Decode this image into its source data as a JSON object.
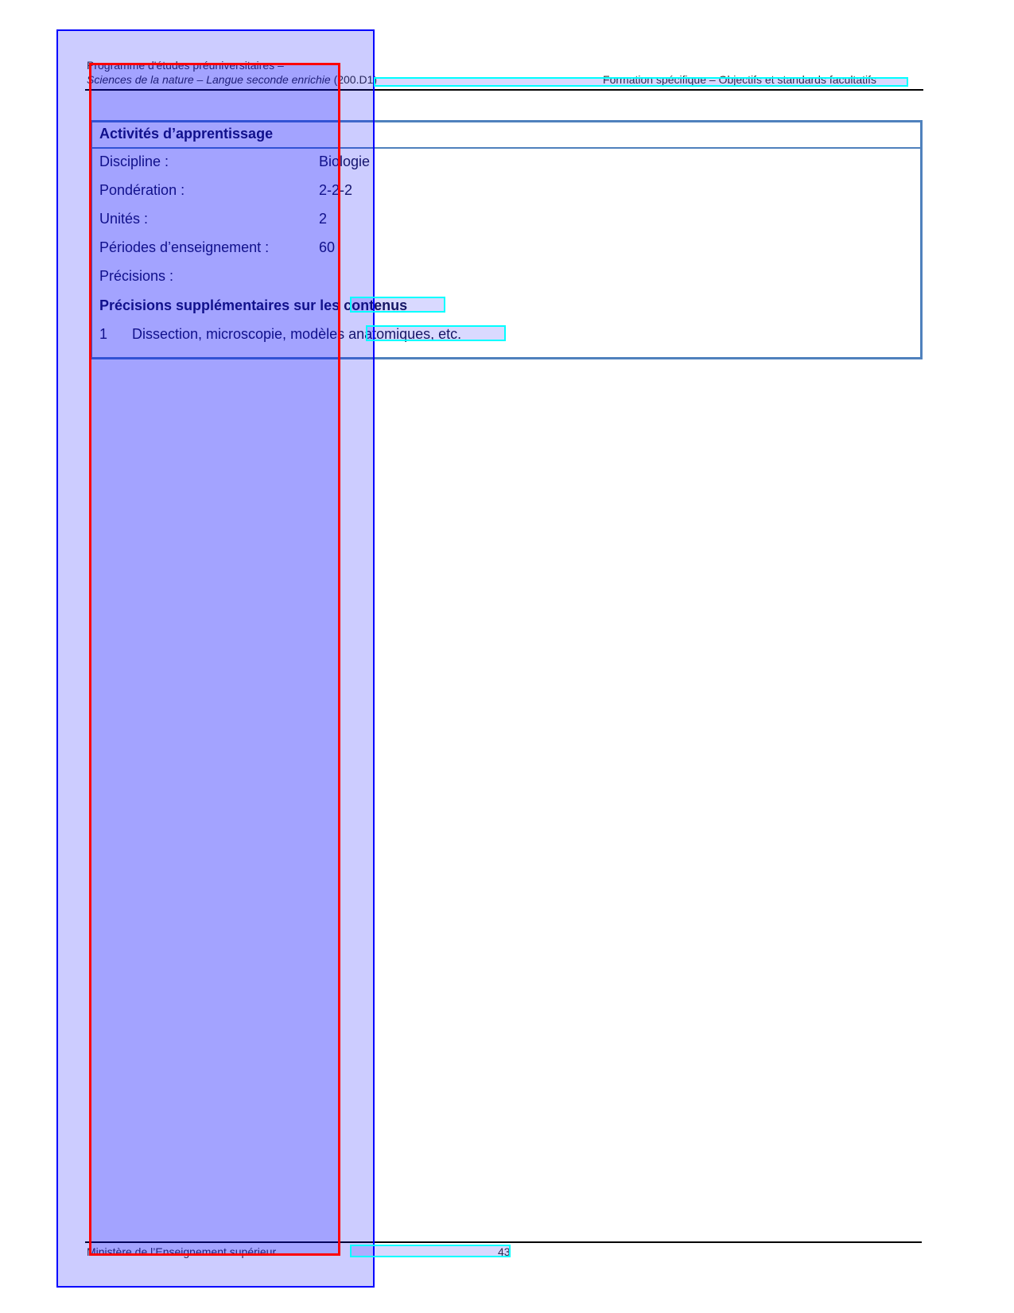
{
  "header": {
    "line1": "Programme d'études préuniversitaires –",
    "line2_italic": "Sciences de la nature – Langue seconde enrichie",
    "line2_code": "(200.D1)",
    "right": "Formation spécifique – Objectifs et standards facultatifs"
  },
  "box": {
    "title": "Activités d’apprentissage",
    "fields": [
      {
        "label": "Discipline :",
        "value": "Biologie"
      },
      {
        "label": "Pondération :",
        "value": "2-2-2"
      },
      {
        "label": "Unités :",
        "value": "2"
      },
      {
        "label": "Périodes d’enseignement :",
        "value": "60"
      },
      {
        "label": "Précisions :",
        "value": ""
      }
    ],
    "subheading": "Précisions supplémentaires sur les contenus",
    "items": [
      {
        "num": "1",
        "text": "Dissection, microscopie, modèles anatomiques, etc."
      }
    ]
  },
  "footer": {
    "left": "Ministère de l’Enseignement supérieur",
    "page": "43"
  }
}
